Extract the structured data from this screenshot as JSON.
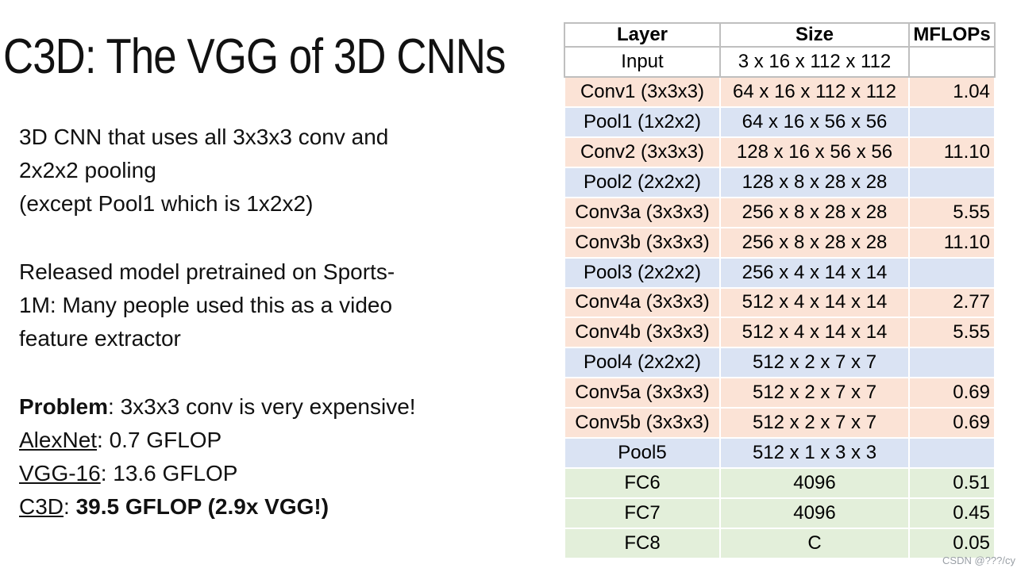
{
  "title": "C3D: The VGG of 3D CNNs",
  "body": {
    "para1": {
      "line1": "3D CNN that uses all 3x3x3 conv and",
      "line2": "2x2x2 pooling",
      "line3": "(except Pool1 which is 1x2x2)"
    },
    "para2": {
      "line1": "Released model pretrained on Sports-",
      "line2": "1M: Many people used this as a video",
      "line3": "feature extractor"
    },
    "problem": {
      "label": "Problem",
      "rest": ": 3x3x3 conv is very expensive!"
    },
    "alexnet": {
      "name": "AlexNet",
      "rest": ": 0.7 GFLOP"
    },
    "vgg": {
      "name": "VGG-16",
      "rest": ": 13.6 GFLOP"
    },
    "c3d": {
      "name": "C3D",
      "colon": ": ",
      "value": "39.5 GFLOP (2.9x VGG!)"
    }
  },
  "table": {
    "headers": [
      "Layer",
      "Size",
      "MFLOPs"
    ],
    "rows": [
      {
        "layer": "Input",
        "size": "3 x 16 x 112 x 112",
        "mflops": "",
        "type": "input"
      },
      {
        "layer": "Conv1 (3x3x3)",
        "size": "64 x 16 x 112 x 112",
        "mflops": "1.04",
        "type": "conv"
      },
      {
        "layer": "Pool1 (1x2x2)",
        "size": "64 x 16 x 56 x 56",
        "mflops": "",
        "type": "pool"
      },
      {
        "layer": "Conv2 (3x3x3)",
        "size": "128 x 16 x 56 x 56",
        "mflops": "11.10",
        "type": "conv"
      },
      {
        "layer": "Pool2 (2x2x2)",
        "size": "128 x 8 x 28 x 28",
        "mflops": "",
        "type": "pool"
      },
      {
        "layer": "Conv3a (3x3x3)",
        "size": "256 x 8 x 28 x 28",
        "mflops": "5.55",
        "type": "conv"
      },
      {
        "layer": "Conv3b (3x3x3)",
        "size": "256 x 8 x 28 x 28",
        "mflops": "11.10",
        "type": "conv"
      },
      {
        "layer": "Pool3 (2x2x2)",
        "size": "256 x 4 x 14 x 14",
        "mflops": "",
        "type": "pool"
      },
      {
        "layer": "Conv4a (3x3x3)",
        "size": "512 x 4 x 14 x 14",
        "mflops": "2.77",
        "type": "conv"
      },
      {
        "layer": "Conv4b (3x3x3)",
        "size": "512 x 4 x 14 x 14",
        "mflops": "5.55",
        "type": "conv"
      },
      {
        "layer": "Pool4 (2x2x2)",
        "size": "512 x 2 x 7 x 7",
        "mflops": "",
        "type": "pool"
      },
      {
        "layer": "Conv5a (3x3x3)",
        "size": "512 x 2 x 7 x 7",
        "mflops": "0.69",
        "type": "conv"
      },
      {
        "layer": "Conv5b (3x3x3)",
        "size": "512 x 2 x 7 x 7",
        "mflops": "0.69",
        "type": "conv"
      },
      {
        "layer": "Pool5",
        "size": "512 x 1 x 3 x 3",
        "mflops": "",
        "type": "pool"
      },
      {
        "layer": "FC6",
        "size": "4096",
        "mflops": "0.51",
        "type": "fc"
      },
      {
        "layer": "FC7",
        "size": "4096",
        "mflops": "0.45",
        "type": "fc"
      },
      {
        "layer": "FC8",
        "size": "C",
        "mflops": "0.05",
        "type": "fc"
      }
    ]
  },
  "watermark": "CSDN @???/cy",
  "colors": {
    "conv_row": "#fbe3d6",
    "pool_row": "#dae3f3",
    "fc_row": "#e3efda",
    "grid_line": "#bfbfbf"
  }
}
